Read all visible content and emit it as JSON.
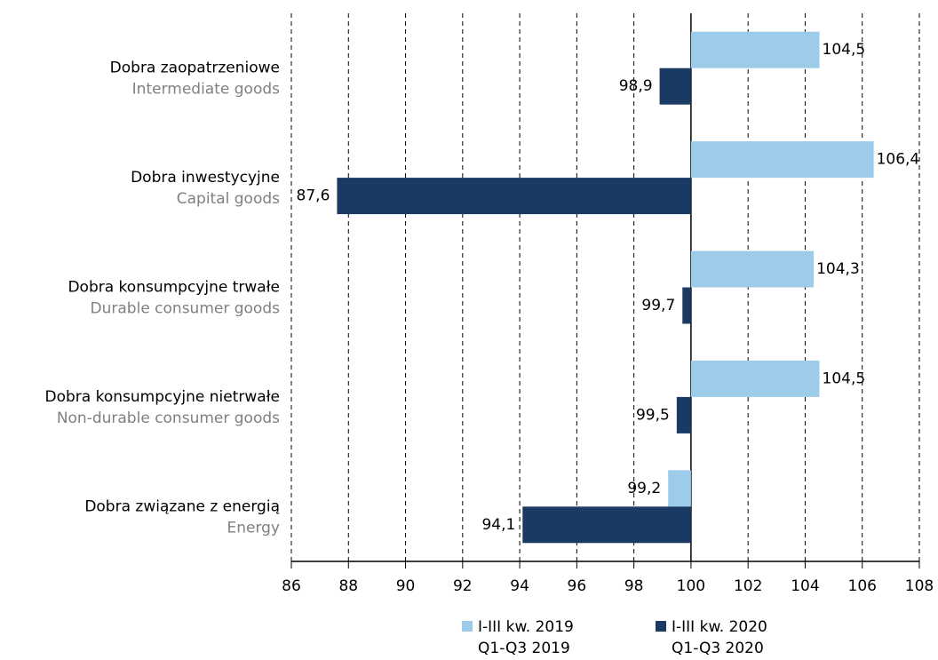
{
  "chart_data": {
    "type": "bar",
    "orientation": "horizontal",
    "categories": [
      "Dobra zaopatrzeniowe",
      "Dobra inwestycyjne",
      "Dobra konsumpcyjne trwałe",
      "Dobra konsumpcyjne nietrwałe",
      "Dobra związane z energią"
    ],
    "categories_en": [
      "Intermediate goods",
      "Capital goods",
      "Durable consumer goods",
      "Non-durable consumer goods",
      "Energy"
    ],
    "series": [
      {
        "name": "I-III kw. 2019",
        "name_en": "Q1-Q3 2019",
        "color": "#9dcbea",
        "values": [
          104.5,
          106.4,
          104.3,
          104.5,
          99.2
        ],
        "value_labels": [
          "104,5",
          "106,4",
          "104,3",
          "104,5",
          "99,2"
        ]
      },
      {
        "name": "I-III kw. 2020",
        "name_en": "Q1-Q3 2020",
        "color": "#1b3a63",
        "values": [
          98.9,
          87.6,
          99.7,
          99.5,
          94.1
        ],
        "value_labels": [
          "98,9",
          "87,6",
          "99,7",
          "99,5",
          "94,1"
        ]
      }
    ],
    "xlim": [
      86,
      108
    ],
    "xticks": [
      86,
      88,
      90,
      92,
      94,
      96,
      98,
      100,
      102,
      104,
      106,
      108
    ],
    "baseline": 100,
    "grid": true,
    "legend": "bottom"
  }
}
